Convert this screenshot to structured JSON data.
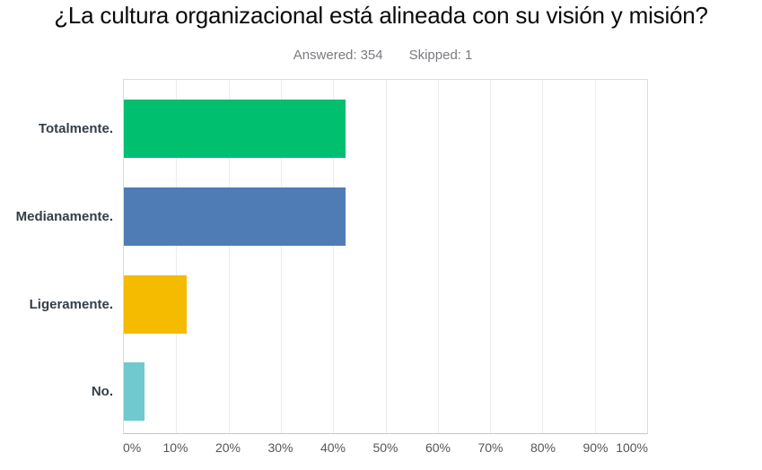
{
  "header": {
    "title": "¿La cultura organizacional está alineada con su visión y misión?",
    "answered_label": "Answered:",
    "answered_value": "354",
    "skipped_label": "Skipped:",
    "skipped_value": "1"
  },
  "chart_data": {
    "type": "bar",
    "orientation": "horizontal",
    "title": "¿La cultura organizacional está alineada con su visión y misión?",
    "answered": 354,
    "skipped": 1,
    "categories": [
      "Totalmente.",
      "Medianamente.",
      "Ligeramente.",
      "No."
    ],
    "values": [
      42.4,
      42.3,
      12.0,
      3.9
    ],
    "value_unit": "%",
    "colors": [
      "#00bf6f",
      "#507cb6",
      "#f5bb00",
      "#6fc9ce"
    ],
    "xlim": [
      0,
      100
    ],
    "x_tick_labels": [
      "0%",
      "10%",
      "20%",
      "30%",
      "40%",
      "50%",
      "60%",
      "70%",
      "80%",
      "90%",
      "100%"
    ],
    "grid": true,
    "gridline_color": "#ececee",
    "legend": false,
    "bar_value_labels_shown": false
  }
}
